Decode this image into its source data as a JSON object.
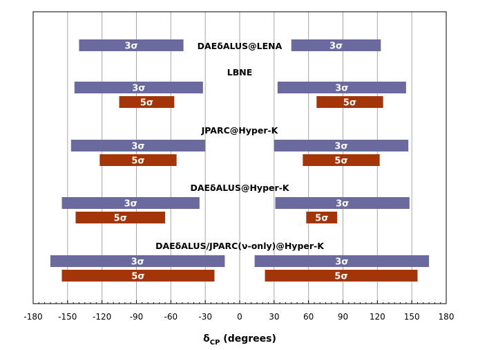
{
  "chart_data": {
    "type": "bar",
    "orientation": "horizontal-range",
    "xlabel": {
      "main": "δ",
      "sub": "CP",
      "rest": " (degrees)"
    },
    "xlim": [
      -180,
      180
    ],
    "xticks": [
      -180,
      -150,
      -120,
      -90,
      -60,
      -30,
      0,
      30,
      60,
      90,
      120,
      150,
      180
    ],
    "grid": "vertical",
    "colors": {
      "sigma3": "#6a6a9e",
      "sigma5": "#a33508",
      "grid": "#a6a6a6",
      "border": "#000000"
    },
    "experiments": [
      {
        "name": "DAEδALUS@LENA",
        "ranges": [
          {
            "sigma": "3σ",
            "level": 3,
            "from": -140,
            "to": -49
          },
          {
            "sigma": "3σ",
            "level": 3,
            "from": 45,
            "to": 123
          }
        ]
      },
      {
        "name": "LBNE",
        "ranges": [
          {
            "sigma": "3σ",
            "level": 3,
            "from": -144,
            "to": -32
          },
          {
            "sigma": "3σ",
            "level": 3,
            "from": 33,
            "to": 145
          },
          {
            "sigma": "5σ",
            "level": 5,
            "from": -105,
            "to": -57
          },
          {
            "sigma": "5σ",
            "level": 5,
            "from": 67,
            "to": 125
          }
        ]
      },
      {
        "name": "JPARC@Hyper-K",
        "ranges": [
          {
            "sigma": "3σ",
            "level": 3,
            "from": -147,
            "to": -30
          },
          {
            "sigma": "3σ",
            "level": 3,
            "from": 30,
            "to": 147
          },
          {
            "sigma": "5σ",
            "level": 5,
            "from": -122,
            "to": -55
          },
          {
            "sigma": "5σ",
            "level": 5,
            "from": 55,
            "to": 122
          }
        ]
      },
      {
        "name": "DAEδALUS@Hyper-K",
        "ranges": [
          {
            "sigma": "3σ",
            "level": 3,
            "from": -155,
            "to": -35
          },
          {
            "sigma": "3σ",
            "level": 3,
            "from": 31,
            "to": 148
          },
          {
            "sigma": "5σ",
            "level": 5,
            "from": -143,
            "to": -65
          },
          {
            "sigma": "5σ",
            "level": 5,
            "from": 58,
            "to": 85
          }
        ]
      },
      {
        "name": "DAEδALUS/JPARC(ν-only)@Hyper-K",
        "ranges": [
          {
            "sigma": "3σ",
            "level": 3,
            "from": -165,
            "to": -13
          },
          {
            "sigma": "3σ",
            "level": 3,
            "from": 13,
            "to": 165
          },
          {
            "sigma": "5σ",
            "level": 5,
            "from": -155,
            "to": -22
          },
          {
            "sigma": "5σ",
            "level": 5,
            "from": 22,
            "to": 155
          }
        ]
      }
    ]
  }
}
